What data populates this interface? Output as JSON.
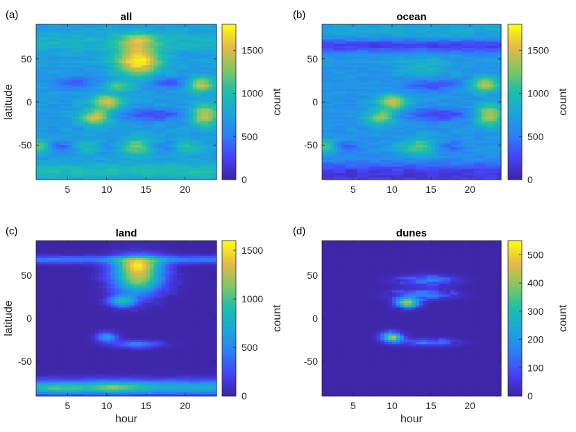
{
  "colors": {
    "parula": [
      "#3e26a8",
      "#4743f8",
      "#2c80f6",
      "#1aa6d9",
      "#1ebfaa",
      "#82c862",
      "#e4b84a",
      "#f9fb0e"
    ],
    "axis": "#262626"
  },
  "chart_data": [
    {
      "type": "heatmap",
      "letter": "(a)",
      "title": "all",
      "xlabel": "",
      "ylabel": "latitude",
      "xlim": [
        1,
        24
      ],
      "ylim": [
        -90,
        90
      ],
      "xticks": [
        5,
        10,
        15,
        20
      ],
      "yticks": [
        50,
        0,
        -50
      ],
      "colorbar": {
        "label": "count",
        "range": [
          0,
          1800
        ],
        "ticks": [
          0,
          500,
          1000,
          1500
        ]
      },
      "base_level": 700,
      "bands": [
        {
          "lat": -80,
          "width": 6,
          "amp": 300
        },
        {
          "lat": 70,
          "width": 8,
          "amp": 200
        }
      ],
      "hotspots": [
        {
          "hour": 14,
          "lat": 48,
          "sx": 2.0,
          "sy": 12,
          "amp": 1100
        },
        {
          "hour": 14,
          "lat": 72,
          "sx": 1.5,
          "sy": 6,
          "amp": 500
        },
        {
          "hour": 10,
          "lat": 0,
          "sx": 1.3,
          "sy": 6,
          "amp": 850
        },
        {
          "hour": 8.5,
          "lat": -18,
          "sx": 1.3,
          "sy": 6,
          "amp": 850
        },
        {
          "hour": 11.5,
          "lat": 18,
          "sx": 1.3,
          "sy": 4,
          "amp": 500
        },
        {
          "hour": 22,
          "lat": 20,
          "sx": 1.2,
          "sy": 6,
          "amp": 800
        },
        {
          "hour": 22.5,
          "lat": -15,
          "sx": 1.2,
          "sy": 9,
          "amp": 800
        },
        {
          "hour": 14,
          "lat": -52,
          "sx": 1.8,
          "sy": 7,
          "amp": 600
        },
        {
          "hour": 1.5,
          "lat": -52,
          "sx": 1.2,
          "sy": 6,
          "amp": 500
        },
        {
          "hour": 8,
          "lat": -52,
          "sx": 1.5,
          "sy": 6,
          "amp": 350
        },
        {
          "hour": 20,
          "lat": -52,
          "sx": 1.5,
          "sy": 6,
          "amp": 350
        }
      ],
      "dips": [
        {
          "hour": 16,
          "lat": -15,
          "sx": 3,
          "sy": 5,
          "amp": 450
        },
        {
          "hour": 4,
          "lat": -52,
          "sx": 1.3,
          "sy": 5,
          "amp": 350
        },
        {
          "hour": 17,
          "lat": -52,
          "sx": 1.5,
          "sy": 5,
          "amp": 350
        },
        {
          "hour": 10,
          "lat": -52,
          "sx": 1.3,
          "sy": 5,
          "amp": 300
        },
        {
          "hour": 6,
          "lat": 22,
          "sx": 2,
          "sy": 5,
          "amp": 350
        },
        {
          "hour": 18,
          "lat": 22,
          "sx": 2,
          "sy": 5,
          "amp": 350
        }
      ]
    },
    {
      "type": "heatmap",
      "letter": "(b)",
      "title": "ocean",
      "xlabel": "",
      "ylabel": "",
      "xlim": [
        1,
        24
      ],
      "ylim": [
        -90,
        90
      ],
      "xticks": [
        5,
        10,
        15,
        20
      ],
      "yticks": [
        50,
        0,
        -50
      ],
      "colorbar": {
        "label": "count",
        "range": [
          0,
          1800
        ],
        "ticks": [
          0,
          500,
          1000,
          1500
        ]
      },
      "base_level": 650,
      "bands": [
        {
          "lat": -85,
          "width": 10,
          "amp": -500
        },
        {
          "lat": 65,
          "width": 5,
          "amp": -450
        },
        {
          "lat": 82,
          "width": 6,
          "amp": 150
        }
      ],
      "hotspots": [
        {
          "hour": 10,
          "lat": 0,
          "sx": 1.3,
          "sy": 6,
          "amp": 850
        },
        {
          "hour": 8.5,
          "lat": -18,
          "sx": 1.3,
          "sy": 6,
          "amp": 700
        },
        {
          "hour": 22,
          "lat": 20,
          "sx": 1.2,
          "sy": 6,
          "amp": 800
        },
        {
          "hour": 22.5,
          "lat": -15,
          "sx": 1.2,
          "sy": 9,
          "amp": 800
        },
        {
          "hour": 13.5,
          "lat": -52,
          "sx": 1.8,
          "sy": 7,
          "amp": 550
        },
        {
          "hour": 1.5,
          "lat": -52,
          "sx": 1.2,
          "sy": 6,
          "amp": 500
        },
        {
          "hour": 14,
          "lat": 40,
          "sx": 2.5,
          "sy": 12,
          "amp": 250
        }
      ],
      "dips": [
        {
          "hour": 16,
          "lat": -15,
          "sx": 3,
          "sy": 5,
          "amp": 450
        },
        {
          "hour": 15,
          "lat": 20,
          "sx": 2.5,
          "sy": 5,
          "amp": 400
        },
        {
          "hour": 4,
          "lat": -52,
          "sx": 1.3,
          "sy": 5,
          "amp": 300
        },
        {
          "hour": 17,
          "lat": -52,
          "sx": 1.5,
          "sy": 5,
          "amp": 300
        }
      ]
    },
    {
      "type": "heatmap",
      "letter": "(c)",
      "title": "land",
      "xlabel": "hour",
      "ylabel": "latitude",
      "xlim": [
        1,
        24
      ],
      "ylim": [
        -90,
        90
      ],
      "xticks": [
        5,
        10,
        15,
        20
      ],
      "yticks": [
        50,
        0,
        -50
      ],
      "colorbar": {
        "label": "count",
        "range": [
          0,
          1600
        ],
        "ticks": [
          0,
          500,
          1000,
          1500
        ]
      },
      "base_level": 0,
      "bands": [
        {
          "lat": -80,
          "width": 6,
          "amp": 750
        },
        {
          "lat": 68,
          "width": 3,
          "amp": 450
        }
      ],
      "hotspots": [
        {
          "hour": 14,
          "lat": 48,
          "sx": 2.2,
          "sy": 14,
          "amp": 1250
        },
        {
          "hour": 14,
          "lat": 62,
          "sx": 2.0,
          "sy": 6,
          "amp": 700
        },
        {
          "hour": 12,
          "lat": 20,
          "sx": 1.2,
          "sy": 5,
          "amp": 800
        },
        {
          "hour": 10,
          "lat": -22,
          "sx": 0.9,
          "sy": 4,
          "amp": 650
        },
        {
          "hour": 14,
          "lat": -30,
          "sx": 2.0,
          "sy": 3,
          "amp": 500
        },
        {
          "hour": 11,
          "lat": -80,
          "sx": 2.5,
          "sy": 5,
          "amp": 400
        },
        {
          "hour": 4,
          "lat": -82,
          "sx": 2.0,
          "sy": 4,
          "amp": 300
        }
      ],
      "dips": []
    },
    {
      "type": "heatmap",
      "letter": "(d)",
      "title": "dunes",
      "xlabel": "hour",
      "ylabel": "",
      "xlim": [
        1,
        24
      ],
      "ylim": [
        -90,
        90
      ],
      "xticks": [
        5,
        10,
        15,
        20
      ],
      "yticks": [
        50,
        0,
        -50
      ],
      "colorbar": {
        "label": "count",
        "range": [
          0,
          550
        ],
        "ticks": [
          0,
          100,
          200,
          300,
          400,
          500
        ]
      },
      "base_level": 0,
      "bands": [],
      "hotspots": [
        {
          "hour": 12,
          "lat": 18,
          "sx": 1.0,
          "sy": 4,
          "amp": 450
        },
        {
          "hour": 14,
          "lat": 28,
          "sx": 2.5,
          "sy": 4,
          "amp": 180
        },
        {
          "hour": 14.5,
          "lat": 44,
          "sx": 2.5,
          "sy": 4,
          "amp": 150
        },
        {
          "hour": 10,
          "lat": -22,
          "sx": 0.9,
          "sy": 4,
          "amp": 420
        },
        {
          "hour": 15,
          "lat": -28,
          "sx": 2.2,
          "sy": 3,
          "amp": 150
        }
      ],
      "dips": []
    }
  ]
}
